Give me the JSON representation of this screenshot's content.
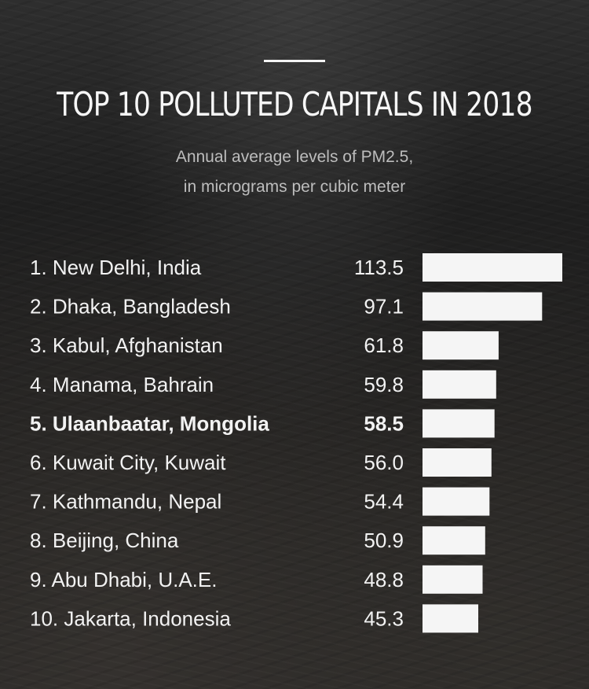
{
  "title": "TOP 10 POLLUTED CAPITALS IN 2018",
  "subtitle_line1": "Annual average levels of PM2.5,",
  "subtitle_line2": "in micrograms per cubic meter",
  "colors": {
    "bar": "#f5f5f5",
    "text": "#f2f2f2",
    "subtitle": "#bdbdbd"
  },
  "chart_data": {
    "type": "bar",
    "orientation": "horizontal",
    "categories": [
      "1. New Delhi, India",
      "2. Dhaka, Bangladesh",
      "3. Kabul, Afghanistan",
      "4. Manama, Bahrain",
      "5. Ulaanbaatar, Mongolia",
      "6. Kuwait City, Kuwait",
      "7. Kathmandu, Nepal",
      "8. Beijing, China",
      "9. Abu Dhabi, U.A.E.",
      "10. Jakarta, Indonesia"
    ],
    "values": [
      113.5,
      97.1,
      61.8,
      59.8,
      58.5,
      56.0,
      54.4,
      50.9,
      48.8,
      45.3
    ],
    "value_labels": [
      "113.5",
      "97.1",
      "61.8",
      "59.8",
      "58.5",
      "56.0",
      "54.4",
      "50.9",
      "48.8",
      "45.3"
    ],
    "highlighted": [
      false,
      false,
      false,
      false,
      true,
      false,
      false,
      false,
      false,
      false
    ],
    "grid": false
  }
}
